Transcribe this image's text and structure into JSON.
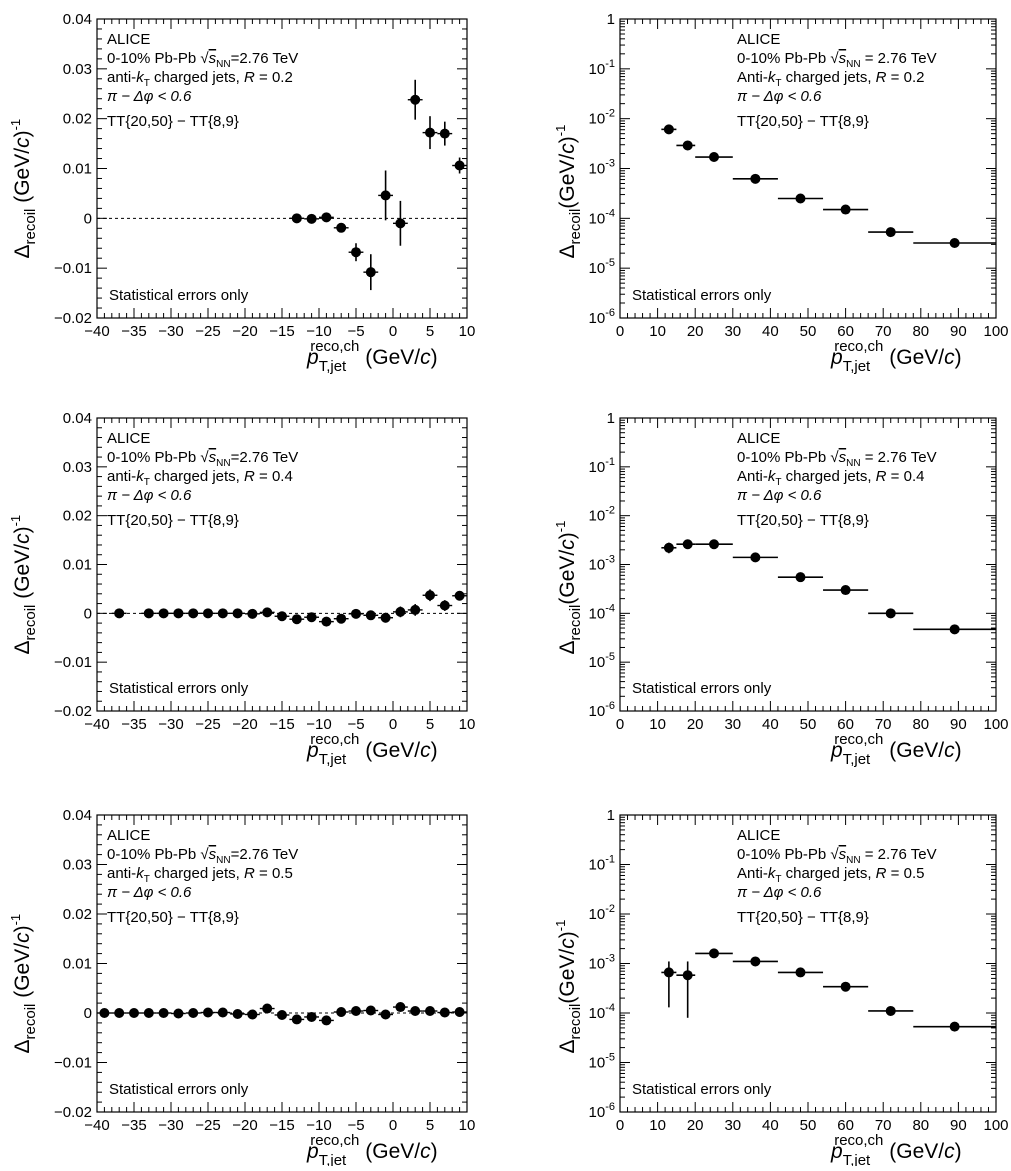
{
  "figure": {
    "background": "#ffffff",
    "marker_color": "#000000"
  },
  "chart_data": [
    {
      "type": "scatter",
      "scale": "linear",
      "xlim": [
        -40,
        10
      ],
      "ylim": [
        -0.02,
        0.04
      ],
      "xticks": [
        "-40",
        "-35",
        "-30",
        "-25",
        "-20",
        "-15",
        "-10",
        "-5",
        "0",
        "5",
        "10"
      ],
      "yticks": [
        "-0.02",
        "-0.01",
        "0",
        "0.01",
        "0.02",
        "0.03",
        "0.04"
      ],
      "zero_line": true,
      "ylabel": "Δrecoil (GeV/c)-1",
      "xlabel": "p T,jet reco,ch (GeV/c)",
      "annotations": [
        "ALICE",
        "0-10% Pb-Pb √sNN=2.76 TeV",
        "anti-kT charged jets, R = 0.2",
        "π − Δφ < 0.6",
        "TT{20,50} − TT{8,9}"
      ],
      "footnote": "Statistical errors only",
      "points": [
        {
          "x": -13,
          "y": 0.0,
          "err": 0.0003
        },
        {
          "x": -11,
          "y": -0.0001,
          "err": 0.0004
        },
        {
          "x": -9,
          "y": 0.0002,
          "err": 0.0005
        },
        {
          "x": -7,
          "y": -0.0019,
          "err": 0.0009
        },
        {
          "x": -5,
          "y": -0.0068,
          "err": 0.0018
        },
        {
          "x": -3,
          "y": -0.0108,
          "err": 0.0036
        },
        {
          "x": -1,
          "y": 0.0046,
          "err": 0.005
        },
        {
          "x": 1,
          "y": -0.001,
          "err": 0.0045
        },
        {
          "x": 3,
          "y": 0.0238,
          "err": 0.004
        },
        {
          "x": 5,
          "y": 0.0172,
          "err": 0.0033
        },
        {
          "x": 7,
          "y": 0.017,
          "err": 0.0024
        },
        {
          "x": 9,
          "y": 0.0106,
          "err": 0.0016
        }
      ]
    },
    {
      "type": "scatter",
      "scale": "log",
      "xlim": [
        0,
        100
      ],
      "ylim": [
        1e-06,
        1
      ],
      "xticks": [
        "0",
        "10",
        "20",
        "30",
        "40",
        "50",
        "60",
        "70",
        "80",
        "90",
        "100"
      ],
      "yticks": [
        "10^-6",
        "10^-5",
        "10^-4",
        "10^-3",
        "10^-2",
        "10^-1",
        "1"
      ],
      "ylabel": "Δrecoil(GeV/c)-1",
      "xlabel": "p T,jet reco,ch (GeV/c)",
      "annotations": [
        "ALICE",
        "0-10% Pb-Pb √sNN = 2.76 TeV",
        "Anti-kT charged jets, R = 0.2",
        "π − Δφ < 0.6",
        "TT{20,50} − TT{8,9}"
      ],
      "footnote": "Statistical errors only",
      "points": [
        {
          "x": 13,
          "y": 0.0061,
          "xlo": 11,
          "xhi": 15
        },
        {
          "x": 18,
          "y": 0.0029,
          "xlo": 15,
          "xhi": 20
        },
        {
          "x": 25,
          "y": 0.0017,
          "xlo": 20,
          "xhi": 30
        },
        {
          "x": 36,
          "y": 0.00062,
          "xlo": 30,
          "xhi": 42
        },
        {
          "x": 48,
          "y": 0.00025,
          "xlo": 42,
          "xhi": 54
        },
        {
          "x": 60,
          "y": 0.00015,
          "xlo": 54,
          "xhi": 66
        },
        {
          "x": 72,
          "y": 5.3e-05,
          "xlo": 66,
          "xhi": 78
        },
        {
          "x": 89,
          "y": 3.2e-05,
          "xlo": 78,
          "xhi": 100
        }
      ]
    },
    {
      "type": "scatter",
      "scale": "linear",
      "xlim": [
        -40,
        10
      ],
      "ylim": [
        -0.02,
        0.04
      ],
      "xticks": [
        "-40",
        "-35",
        "-30",
        "-25",
        "-20",
        "-15",
        "-10",
        "-5",
        "0",
        "5",
        "10"
      ],
      "yticks": [
        "-0.02",
        "-0.01",
        "0",
        "0.01",
        "0.02",
        "0.03",
        "0.04"
      ],
      "zero_line": true,
      "ylabel": "Δrecoil (GeV/c)-1",
      "xlabel": "p T,jet reco,ch (GeV/c)",
      "annotations": [
        "ALICE",
        "0-10% Pb-Pb √sNN=2.76 TeV",
        "anti-kT charged jets, R = 0.4",
        "π − Δφ < 0.6",
        "TT{20,50} − TT{8,9}"
      ],
      "footnote": "Statistical errors only",
      "points": [
        {
          "x": -37,
          "y": 0.0,
          "err": 0.0002
        },
        {
          "x": -33,
          "y": 0.0,
          "err": 0.0002
        },
        {
          "x": -31,
          "y": 0.0,
          "err": 0.0002
        },
        {
          "x": -29,
          "y": 0.0,
          "err": 0.0002
        },
        {
          "x": -27,
          "y": 0.0,
          "err": 0.0002
        },
        {
          "x": -25,
          "y": 0.0,
          "err": 0.0002
        },
        {
          "x": -23,
          "y": 0.0,
          "err": 0.0002
        },
        {
          "x": -21,
          "y": 0.0,
          "err": 0.0002
        },
        {
          "x": -19,
          "y": -0.0001,
          "err": 0.0003
        },
        {
          "x": -17,
          "y": 0.0002,
          "err": 0.0003
        },
        {
          "x": -15,
          "y": -0.0006,
          "err": 0.0004
        },
        {
          "x": -13,
          "y": -0.0012,
          "err": 0.0004
        },
        {
          "x": -11,
          "y": -0.0008,
          "err": 0.0004
        },
        {
          "x": -9,
          "y": -0.0017,
          "err": 0.0005
        },
        {
          "x": -7,
          "y": -0.0011,
          "err": 0.0006
        },
        {
          "x": -5,
          "y": -0.0001,
          "err": 0.0007
        },
        {
          "x": -3,
          "y": -0.0004,
          "err": 0.0008
        },
        {
          "x": -1,
          "y": -0.0009,
          "err": 0.001
        },
        {
          "x": 1,
          "y": 0.0003,
          "err": 0.0011
        },
        {
          "x": 3,
          "y": 0.0007,
          "err": 0.0012
        },
        {
          "x": 5,
          "y": 0.0037,
          "err": 0.0012
        },
        {
          "x": 7,
          "y": 0.0016,
          "err": 0.0011
        },
        {
          "x": 9,
          "y": 0.0036,
          "err": 0.0009
        }
      ]
    },
    {
      "type": "scatter",
      "scale": "log",
      "xlim": [
        0,
        100
      ],
      "ylim": [
        1e-06,
        1
      ],
      "xticks": [
        "0",
        "10",
        "20",
        "30",
        "40",
        "50",
        "60",
        "70",
        "80",
        "90",
        "100"
      ],
      "yticks": [
        "10^-6",
        "10^-5",
        "10^-4",
        "10^-3",
        "10^-2",
        "10^-1",
        "1"
      ],
      "ylabel": "Δrecoil(GeV/c)-1",
      "xlabel": "p T,jet reco,ch (GeV/c)",
      "annotations": [
        "ALICE",
        "0-10% Pb-Pb √sNN = 2.76 TeV",
        "Anti-kT charged jets, R = 0.4",
        "π − Δφ < 0.6",
        "TT{20,50} − TT{8,9}"
      ],
      "footnote": "Statistical errors only",
      "points": [
        {
          "x": 13,
          "y": 0.0022,
          "xlo": 11,
          "xhi": 15,
          "ylo": 0.0017,
          "yhi": 0.0028
        },
        {
          "x": 18,
          "y": 0.0026,
          "xlo": 15,
          "xhi": 20
        },
        {
          "x": 25,
          "y": 0.0026,
          "xlo": 20,
          "xhi": 30
        },
        {
          "x": 36,
          "y": 0.0014,
          "xlo": 30,
          "xhi": 42
        },
        {
          "x": 48,
          "y": 0.00055,
          "xlo": 42,
          "xhi": 54
        },
        {
          "x": 60,
          "y": 0.0003,
          "xlo": 54,
          "xhi": 66
        },
        {
          "x": 72,
          "y": 0.0001,
          "xlo": 66,
          "xhi": 78
        },
        {
          "x": 89,
          "y": 4.7e-05,
          "xlo": 78,
          "xhi": 100
        }
      ]
    },
    {
      "type": "scatter",
      "scale": "linear",
      "xlim": [
        -40,
        10
      ],
      "ylim": [
        -0.02,
        0.04
      ],
      "xticks": [
        "-40",
        "-35",
        "-30",
        "-25",
        "-20",
        "-15",
        "-10",
        "-5",
        "0",
        "5",
        "10"
      ],
      "yticks": [
        "-0.02",
        "-0.01",
        "0",
        "0.01",
        "0.02",
        "0.03",
        "0.04"
      ],
      "zero_line": true,
      "ylabel": "Δrecoil (GeV/c)-1",
      "xlabel": "p T,jet reco,ch (GeV/c)",
      "annotations": [
        "ALICE",
        "0-10% Pb-Pb √sNN=2.76 TeV",
        "anti-kT charged jets, R = 0.5",
        "π − Δφ < 0.6",
        "TT{20,50} − TT{8,9}"
      ],
      "footnote": "Statistical errors only",
      "points": [
        {
          "x": -39,
          "y": 0.0,
          "err": 0.0002
        },
        {
          "x": -37,
          "y": 0.0,
          "err": 0.0002
        },
        {
          "x": -35,
          "y": 0.0,
          "err": 0.0002
        },
        {
          "x": -33,
          "y": 0.0,
          "err": 0.0002
        },
        {
          "x": -31,
          "y": 0.0,
          "err": 0.0002
        },
        {
          "x": -29,
          "y": -0.0001,
          "err": 0.0002
        },
        {
          "x": -27,
          "y": 0.0,
          "err": 0.0002
        },
        {
          "x": -25,
          "y": 0.0001,
          "err": 0.0003
        },
        {
          "x": -23,
          "y": 0.0001,
          "err": 0.0003
        },
        {
          "x": -21,
          "y": -0.0002,
          "err": 0.0003
        },
        {
          "x": -19,
          "y": -0.0003,
          "err": 0.0003
        },
        {
          "x": -17,
          "y": 0.0009,
          "err": 0.0004
        },
        {
          "x": -15,
          "y": -0.0004,
          "err": 0.0004
        },
        {
          "x": -13,
          "y": -0.0013,
          "err": 0.0004
        },
        {
          "x": -11,
          "y": -0.0008,
          "err": 0.0005
        },
        {
          "x": -9,
          "y": -0.0015,
          "err": 0.0005
        },
        {
          "x": -7,
          "y": 0.0002,
          "err": 0.0006
        },
        {
          "x": -5,
          "y": 0.0004,
          "err": 0.0006
        },
        {
          "x": -3,
          "y": 0.0005,
          "err": 0.0007
        },
        {
          "x": -1,
          "y": -0.0003,
          "err": 0.0007
        },
        {
          "x": 1,
          "y": 0.0012,
          "err": 0.0008
        },
        {
          "x": 3,
          "y": 0.0004,
          "err": 0.0008
        },
        {
          "x": 5,
          "y": 0.0004,
          "err": 0.0008
        },
        {
          "x": 7,
          "y": 0.0001,
          "err": 0.0008
        },
        {
          "x": 9,
          "y": 0.0002,
          "err": 0.0008
        }
      ]
    },
    {
      "type": "scatter",
      "scale": "log",
      "xlim": [
        0,
        100
      ],
      "ylim": [
        1e-06,
        1
      ],
      "xticks": [
        "0",
        "10",
        "20",
        "30",
        "40",
        "50",
        "60",
        "70",
        "80",
        "90",
        "100"
      ],
      "yticks": [
        "10^-6",
        "10^-5",
        "10^-4",
        "10^-3",
        "10^-2",
        "10^-1",
        "1"
      ],
      "ylabel": "Δrecoil(GeV/c)-1",
      "xlabel": "p T,jet reco,ch (GeV/c)",
      "annotations": [
        "ALICE",
        "0-10% Pb-Pb √sNN = 2.76 TeV",
        "Anti-kT charged jets, R = 0.5",
        "π − Δφ < 0.6",
        "TT{20,50} − TT{8,9}"
      ],
      "footnote": "Statistical errors only",
      "points": [
        {
          "x": 13,
          "y": 0.00066,
          "xlo": 11,
          "xhi": 15,
          "ylo": 0.00013,
          "yhi": 0.0011
        },
        {
          "x": 18,
          "y": 0.00058,
          "xlo": 15,
          "xhi": 20,
          "ylo": 8e-05,
          "yhi": 0.0011
        },
        {
          "x": 25,
          "y": 0.0016,
          "xlo": 20,
          "xhi": 30
        },
        {
          "x": 36,
          "y": 0.0011,
          "xlo": 30,
          "xhi": 42
        },
        {
          "x": 48,
          "y": 0.00066,
          "xlo": 42,
          "xhi": 54
        },
        {
          "x": 60,
          "y": 0.00034,
          "xlo": 54,
          "xhi": 66
        },
        {
          "x": 72,
          "y": 0.00011,
          "xlo": 66,
          "xhi": 78
        },
        {
          "x": 89,
          "y": 5.3e-05,
          "xlo": 78,
          "xhi": 100
        }
      ]
    }
  ]
}
